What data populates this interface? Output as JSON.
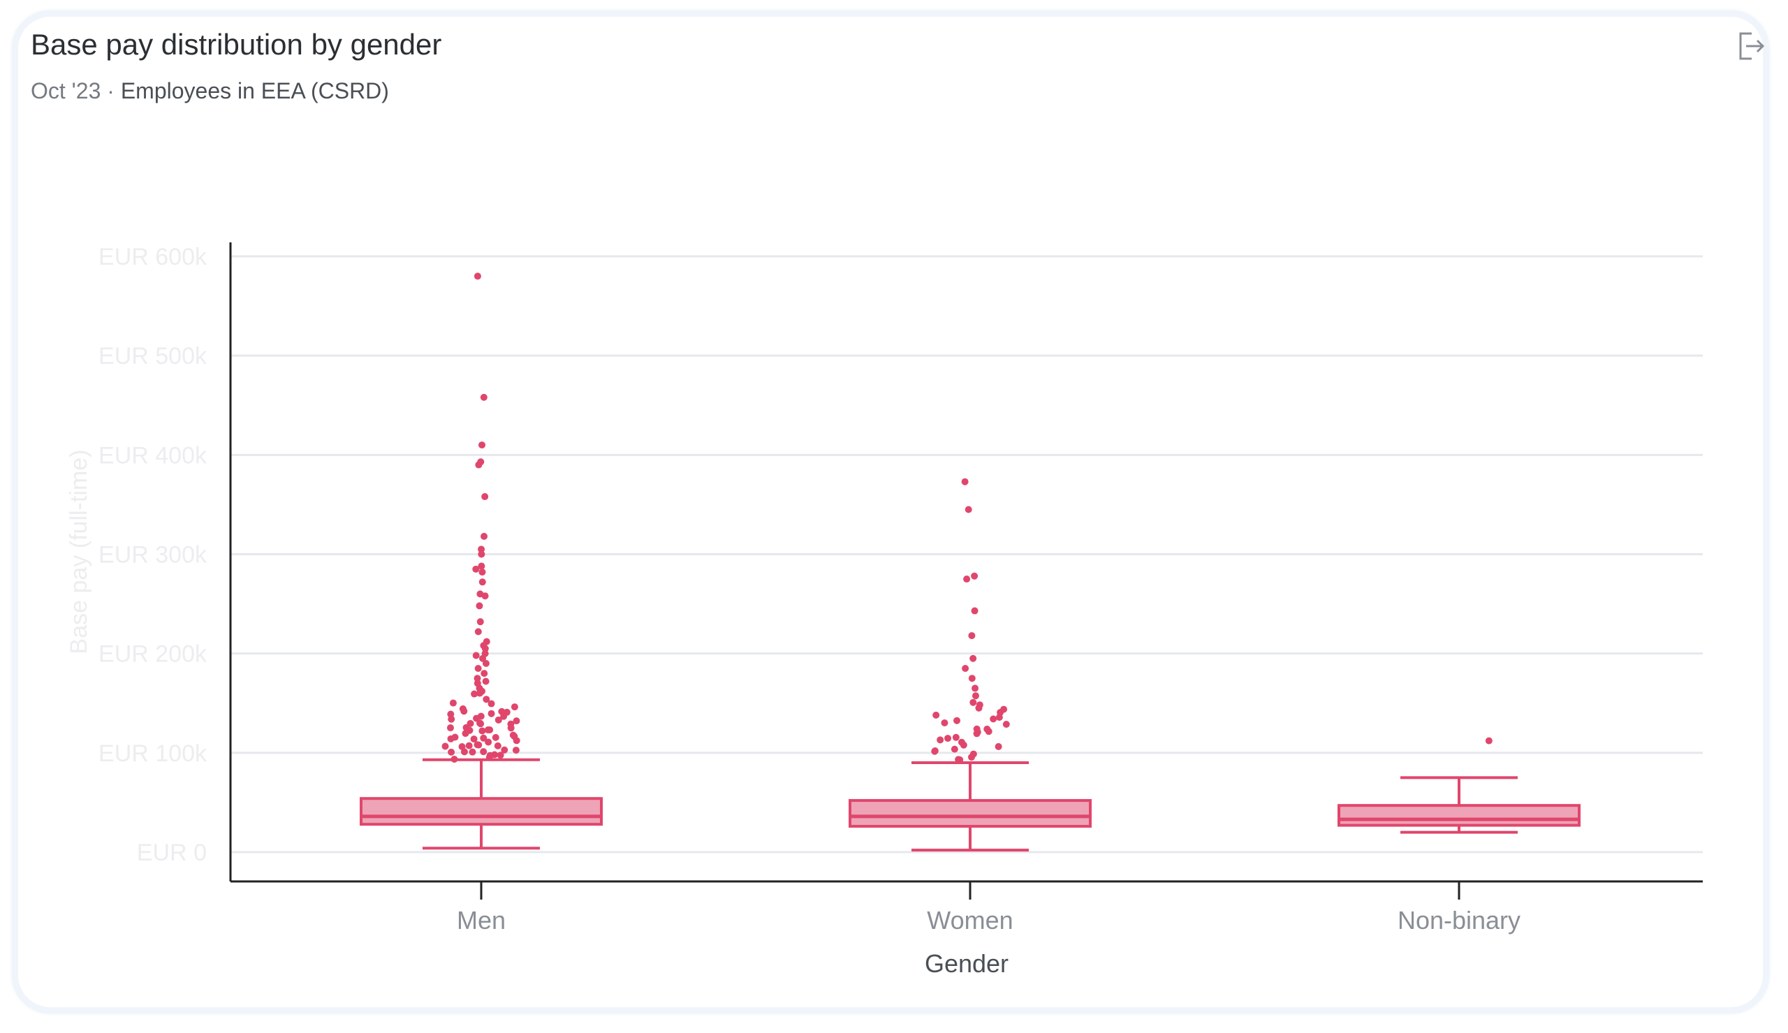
{
  "header": {
    "title": "Base pay distribution by gender",
    "period": "Oct '23",
    "separator": " · ",
    "population": "Employees in EEA (CSRD)",
    "export_icon": "export-icon"
  },
  "colors": {
    "box_fill": "#eea3b6",
    "box_stroke": "#e0466c",
    "outlier": "#e0466c",
    "grid": "#e6e8ee",
    "axis": "#222222",
    "tick_text": "#ededf0",
    "category_text": "#8a8e95",
    "axis_title": "#4a4f55"
  },
  "chart_data": {
    "type": "box",
    "title": "",
    "xlabel": "Gender",
    "ylabel": "Base pay (full-time)",
    "ylim": [
      0,
      600000
    ],
    "yticks": [
      0,
      100000,
      200000,
      300000,
      400000,
      500000,
      600000
    ],
    "ytick_labels": [
      "EUR 0",
      "EUR 100k",
      "EUR 200k",
      "EUR 300k",
      "EUR 400k",
      "EUR 500k",
      "EUR 600k"
    ],
    "grid": true,
    "legend": "none",
    "categories": [
      "Men",
      "Women",
      "Non-binary"
    ],
    "boxes": [
      {
        "category": "Men",
        "whisker_low": 4000,
        "q1": 28000,
        "median": 36000,
        "q3": 54000,
        "whisker_high": 93000,
        "outliers": [
          580000,
          458000,
          410000,
          393000,
          390000,
          358000,
          318000,
          305000,
          300000,
          288000,
          285000,
          282000,
          272000,
          260000,
          258000,
          248000,
          232000,
          222000,
          212000,
          208000,
          205000,
          200000,
          198000,
          195000,
          190000,
          185000,
          180000,
          175000,
          172000,
          170000,
          165000,
          162000,
          160000,
          158000,
          155000,
          152000,
          150000,
          148000,
          146000,
          144000,
          142000,
          140000,
          139000,
          138000,
          137000,
          136000,
          135000,
          134000,
          133000,
          132000,
          131000,
          130000,
          129000,
          128000,
          127000,
          126000,
          125000,
          124000,
          123000,
          122000,
          121000,
          120000,
          119000,
          118000,
          117000,
          116000,
          115000,
          114000,
          113000,
          112000,
          111000,
          110000,
          109000,
          108000,
          107000,
          106000,
          105000,
          104000,
          103000,
          102000,
          101000,
          100000,
          99000,
          98000,
          97000,
          96000,
          95000,
          94000
        ]
      },
      {
        "category": "Women",
        "whisker_low": 2000,
        "q1": 26000,
        "median": 36000,
        "q3": 52000,
        "whisker_high": 90000,
        "outliers": [
          373000,
          345000,
          278000,
          275000,
          243000,
          218000,
          195000,
          185000,
          175000,
          165000,
          158000,
          152000,
          148000,
          145000,
          142000,
          140000,
          138000,
          136000,
          134000,
          132000,
          130000,
          128000,
          126000,
          124000,
          122000,
          120000,
          118000,
          116000,
          114000,
          112000,
          110000,
          108000,
          106000,
          104000,
          102000,
          100000,
          98000,
          96000,
          94000,
          92000
        ]
      },
      {
        "category": "Non-binary",
        "whisker_low": 20000,
        "q1": 27000,
        "median": 33000,
        "q3": 47000,
        "whisker_high": 75000,
        "outliers": [
          113000
        ]
      }
    ]
  }
}
